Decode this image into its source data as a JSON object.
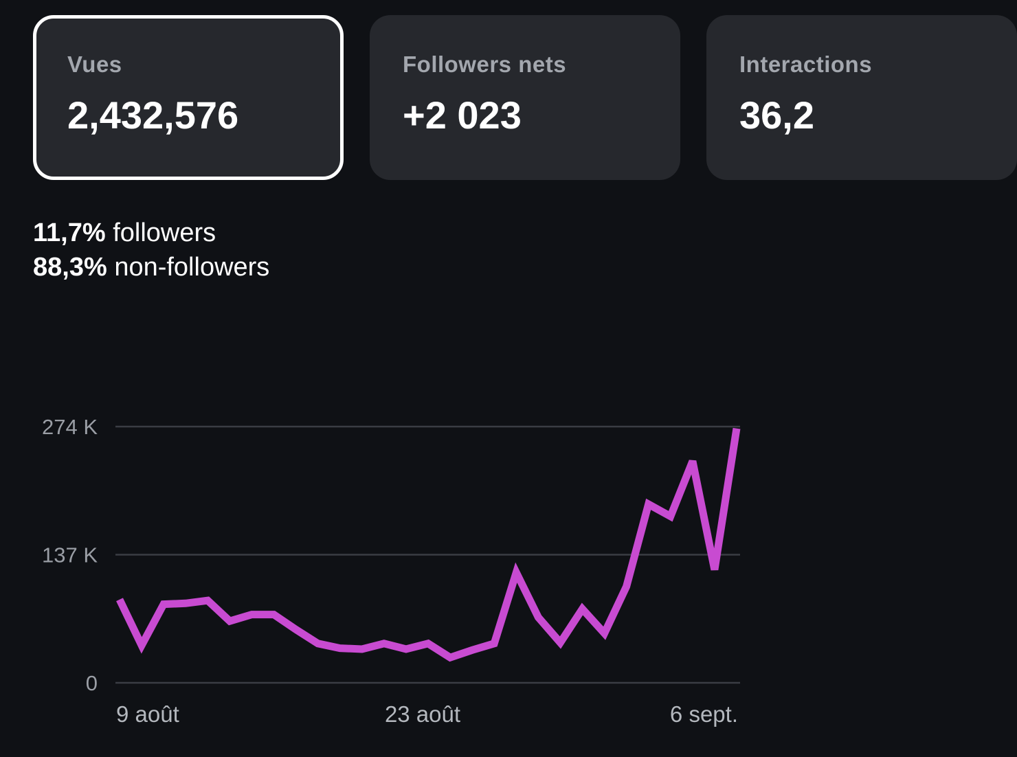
{
  "cards": [
    {
      "label": "Vues",
      "value": "2,432,576",
      "selected": true
    },
    {
      "label": "Followers nets",
      "value": "+2 023",
      "selected": false
    },
    {
      "label": "Interactions",
      "value": "36,2",
      "selected": false
    }
  ],
  "audience": {
    "followers_pct": "11,7%",
    "followers_label": "followers",
    "non_followers_pct": "88,3%",
    "non_followers_label": "non-followers"
  },
  "chart_data": {
    "type": "line",
    "series_color": "#c84bd1",
    "grid": true,
    "ylim": [
      0,
      274000
    ],
    "y_ticks": [
      {
        "value": 0,
        "label": "0"
      },
      {
        "value": 137000,
        "label": "137 K"
      },
      {
        "value": 274000,
        "label": "274 K"
      }
    ],
    "x_ticks": [
      {
        "index": 0,
        "label": "9 août"
      },
      {
        "index": 14,
        "label": "23 août"
      },
      {
        "index": 28,
        "label": "6 sept."
      }
    ],
    "series": [
      {
        "values": [
          89000,
          40000,
          84000,
          85000,
          88000,
          66000,
          73000,
          73000,
          57000,
          42000,
          37000,
          36000,
          42000,
          36000,
          42000,
          27000,
          35000,
          42000,
          118000,
          70000,
          43000,
          79000,
          53000,
          103000,
          191000,
          178000,
          237000,
          121000,
          272000
        ]
      }
    ]
  }
}
